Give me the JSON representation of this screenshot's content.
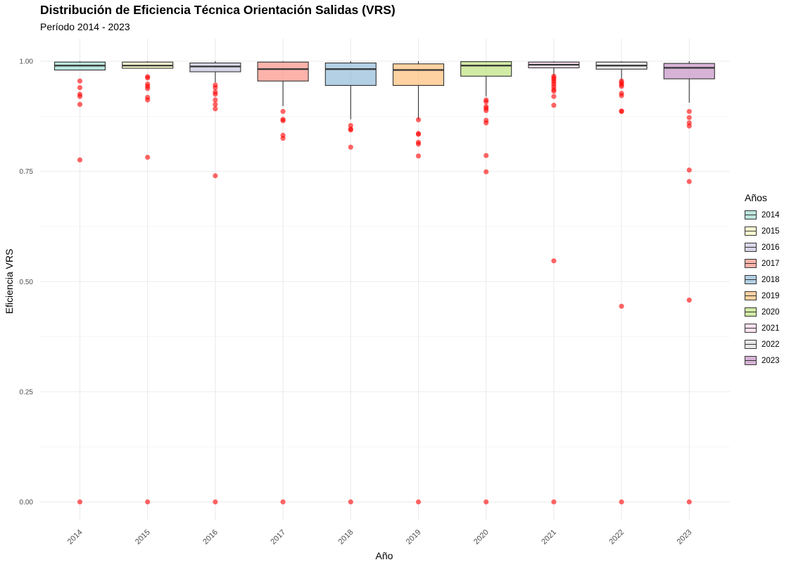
{
  "chart_data": {
    "type": "boxplot",
    "title": "Distribución de Eficiencia Técnica Orientación Salidas (VRS)",
    "subtitle": "Período 2014 - 2023",
    "xlabel": "Año",
    "ylabel": "Eficiencia VRS",
    "ylim": [
      -0.04,
      1.04
    ],
    "yticks": [
      "0.00",
      "0.25",
      "0.50",
      "0.75",
      "1.00"
    ],
    "ytick_values": [
      0,
      0.25,
      0.5,
      0.75,
      1.0
    ],
    "legend_title": "Años",
    "legend_position": "right",
    "grid": true,
    "outlier_color": "#ff0000",
    "series": [
      {
        "name": "2014",
        "color": "#8DD3C7",
        "min": 0.98,
        "q1": 0.98,
        "median": 0.99,
        "q3": 0.998,
        "max": 1.0,
        "outliers": [
          0.955,
          0.94,
          0.925,
          0.92,
          0.902,
          0.776,
          0.0
        ]
      },
      {
        "name": "2015",
        "color": "#FFFFB3",
        "min": 0.984,
        "q1": 0.984,
        "median": 0.99,
        "q3": 0.998,
        "max": 1.0,
        "outliers": [
          0.965,
          0.962,
          0.948,
          0.943,
          0.938,
          0.918,
          0.912,
          0.782,
          0.0
        ]
      },
      {
        "name": "2016",
        "color": "#BEBADA",
        "min": 0.952,
        "q1": 0.976,
        "median": 0.988,
        "q3": 0.996,
        "max": 1.0,
        "outliers": [
          0.946,
          0.94,
          0.93,
          0.925,
          0.912,
          0.902,
          0.892,
          0.74,
          0.0
        ]
      },
      {
        "name": "2017",
        "color": "#FB8072",
        "min": 0.898,
        "q1": 0.955,
        "median": 0.982,
        "q3": 0.998,
        "max": 1.0,
        "outliers": [
          0.886,
          0.868,
          0.865,
          0.832,
          0.825,
          0.0
        ]
      },
      {
        "name": "2018",
        "color": "#80B1D3",
        "min": 0.868,
        "q1": 0.945,
        "median": 0.982,
        "q3": 0.996,
        "max": 1.0,
        "outliers": [
          0.854,
          0.846,
          0.844,
          0.805,
          0.0
        ]
      },
      {
        "name": "2019",
        "color": "#FDB462",
        "min": 0.868,
        "q1": 0.945,
        "median": 0.98,
        "q3": 0.994,
        "max": 1.0,
        "outliers": [
          0.867,
          0.836,
          0.834,
          0.816,
          0.812,
          0.785,
          0.0
        ]
      },
      {
        "name": "2020",
        "color": "#B3DE69",
        "min": 0.92,
        "q1": 0.966,
        "median": 0.99,
        "q3": 0.999,
        "max": 1.0,
        "outliers": [
          0.912,
          0.908,
          0.897,
          0.893,
          0.888,
          0.866,
          0.86,
          0.786,
          0.749,
          0.0
        ]
      },
      {
        "name": "2021",
        "color": "#FCCDE5",
        "min": 0.966,
        "q1": 0.985,
        "median": 0.992,
        "q3": 0.998,
        "max": 1.0,
        "outliers": [
          0.966,
          0.962,
          0.958,
          0.953,
          0.948,
          0.942,
          0.936,
          0.932,
          0.92,
          0.9,
          0.547,
          0.0
        ]
      },
      {
        "name": "2022",
        "color": "#D9D9D9",
        "min": 0.955,
        "q1": 0.982,
        "median": 0.99,
        "q3": 0.998,
        "max": 1.0,
        "outliers": [
          0.955,
          0.951,
          0.947,
          0.943,
          0.927,
          0.922,
          0.887,
          0.886,
          0.444,
          0.0
        ]
      },
      {
        "name": "2023",
        "color": "#BC80BD",
        "min": 0.906,
        "q1": 0.96,
        "median": 0.985,
        "q3": 0.995,
        "max": 1.0,
        "outliers": [
          0.886,
          0.872,
          0.86,
          0.853,
          0.753,
          0.727,
          0.458,
          0.0
        ]
      }
    ]
  }
}
